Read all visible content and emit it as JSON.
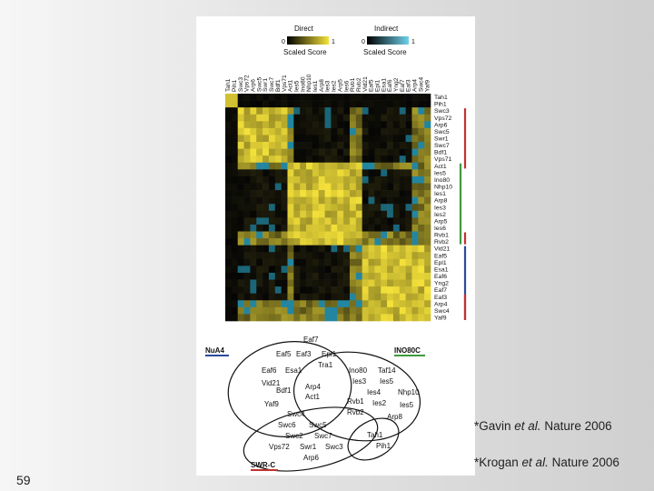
{
  "slide_number": "59",
  "citations": [
    {
      "prefix": "*Gavin ",
      "etal": "et al.",
      "suffix": " Nature 2006"
    },
    {
      "prefix": "*Krogan ",
      "etal": "et al.",
      "suffix": " Nature 2006"
    }
  ],
  "legend": {
    "direct": {
      "title": "Direct",
      "min": "0",
      "max": "1",
      "caption": "Scaled Score"
    },
    "indirect": {
      "title": "Indirect",
      "min": "0",
      "max": "1",
      "caption": "Scaled Score"
    }
  },
  "colors": {
    "direct_high": "#f5e23a",
    "indirect_high": "#2aa6c7",
    "zero": "#050505",
    "nua4": "#2b4a9c",
    "ino80c": "#3f9a3f",
    "swrc": "#c2312f"
  },
  "proteins": [
    "Tah1",
    "Pih1",
    "Swc3",
    "Vps72",
    "Arp6",
    "Swc5",
    "Swr1",
    "Swc7",
    "Bdf1",
    "Vps71",
    "Act1",
    "Ies5",
    "Ino80",
    "Nhp10",
    "Ies1",
    "Arp8",
    "Ies3",
    "Ies2",
    "Arp5",
    "Ies6",
    "Rvb1",
    "Rvb2",
    "Vid21",
    "Eaf5",
    "Epl1",
    "Esa1",
    "Eaf6",
    "Yng2",
    "Eaf7",
    "Eaf3",
    "Arp4",
    "Swc4",
    "Yaf9"
  ],
  "complex_bars": [
    {
      "name": "SWR-C",
      "color": "swrc",
      "start": 2,
      "end": 11
    },
    {
      "name": "INO80C",
      "color": "ino80c",
      "start": 10,
      "end": 22
    },
    {
      "name": "SWR-C",
      "color": "swrc",
      "start": 20,
      "end": 22
    },
    {
      "name": "NuA4",
      "color": "nua4",
      "start": 22,
      "end": 33
    },
    {
      "name": "SWR-C",
      "color": "swrc",
      "start": 29,
      "end": 33
    }
  ],
  "venn": {
    "groups": {
      "nua4": "NuA4",
      "ino80c": "INO80C",
      "swrc": "SWR-C"
    },
    "labels": [
      "Eaf7",
      "Eaf5",
      "Eaf3",
      "Epl1",
      "Tra1",
      "Eaf6",
      "Esa1",
      "Vid21",
      "Arp4",
      "Bdf1",
      "Act1",
      "Yaf9",
      "Swc4",
      "Ino80",
      "Taf14",
      "Ies3",
      "Ies5",
      "Ies4",
      "Nhp10",
      "Rvb1",
      "Ies2",
      "Ies5",
      "Rvb2",
      "Arp8",
      "Swc6",
      "Swc5",
      "Swc2",
      "Swc7",
      "Vps72",
      "Swr1",
      "Swc3",
      "Arp6",
      "Tah1",
      "Pih1"
    ]
  }
}
